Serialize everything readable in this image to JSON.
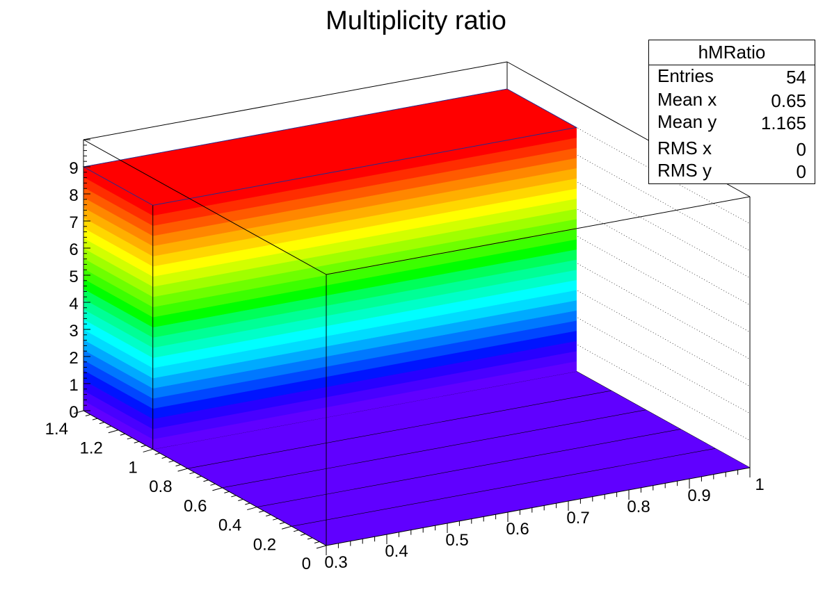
{
  "chart_data": {
    "type": "lego3d",
    "title": "Multiplicity ratio",
    "x_ticks": [
      "0.3",
      "0.4",
      "0.5",
      "0.6",
      "0.7",
      "0.8",
      "0.9",
      "1"
    ],
    "y_ticks": [
      "0",
      "0.2",
      "0.4",
      "0.6",
      "0.8",
      "1",
      "1.2",
      "1.4"
    ],
    "z_ticks": [
      "0",
      "1",
      "2",
      "3",
      "4",
      "5",
      "6",
      "7",
      "8",
      "9"
    ],
    "xlim": [
      0.3,
      1.0
    ],
    "ylim": [
      0,
      1.4
    ],
    "zlim": [
      0,
      10
    ],
    "block": {
      "x_range": [
        0.3,
        1.0
      ],
      "y_range": [
        1.0,
        1.4
      ],
      "z_range": [
        0,
        9
      ]
    },
    "palette": "rainbow",
    "grid": true
  },
  "stats": {
    "name": "hMRatio",
    "rows": [
      {
        "label": "Entries",
        "value": "54"
      },
      {
        "label": "Mean x",
        "value": "0.65"
      },
      {
        "label": "Mean y",
        "value": "1.165"
      },
      {
        "label": "RMS x",
        "value": "0"
      },
      {
        "label": "RMS y",
        "value": "0"
      }
    ]
  }
}
